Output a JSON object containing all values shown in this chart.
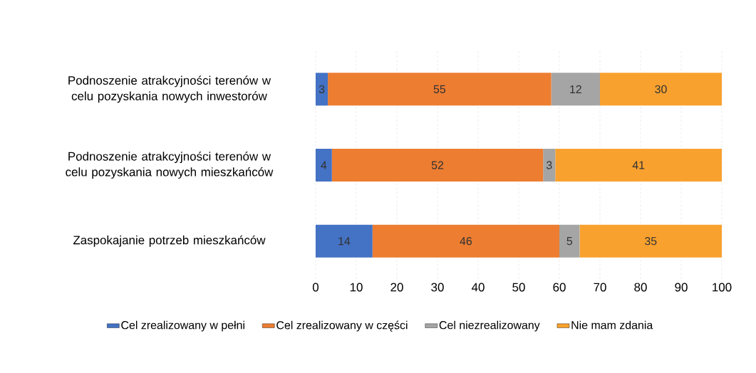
{
  "chart_data": {
    "type": "bar",
    "orientation": "horizontal",
    "stacked": true,
    "categories": [
      "Podnoszenie atrakcyjności terenów w celu pozyskania nowych inwestorów",
      "Podnoszenie atrakcyjności terenów w celu pozyskania nowych mieszkańców",
      "Zaspokajanie potrzeb mieszkańców"
    ],
    "series": [
      {
        "name": "Cel zrealizowany w pełni",
        "color": "#4472c4",
        "values": [
          3,
          4,
          14
        ]
      },
      {
        "name": "Cel zrealizowany w części",
        "color": "#ed7d31",
        "values": [
          55,
          52,
          46
        ]
      },
      {
        "name": "Cel niezrealizowany",
        "color": "#a5a5a5",
        "values": [
          12,
          3,
          5
        ]
      },
      {
        "name": "Nie mam zdania",
        "color": "#f9a12e",
        "values": [
          30,
          41,
          35
        ]
      }
    ],
    "xlim": [
      0,
      100
    ],
    "xticks": [
      0,
      10,
      20,
      30,
      40,
      50,
      60,
      70,
      80,
      90,
      100
    ],
    "grid": "x",
    "legend": "bottom",
    "data_labels": true
  }
}
